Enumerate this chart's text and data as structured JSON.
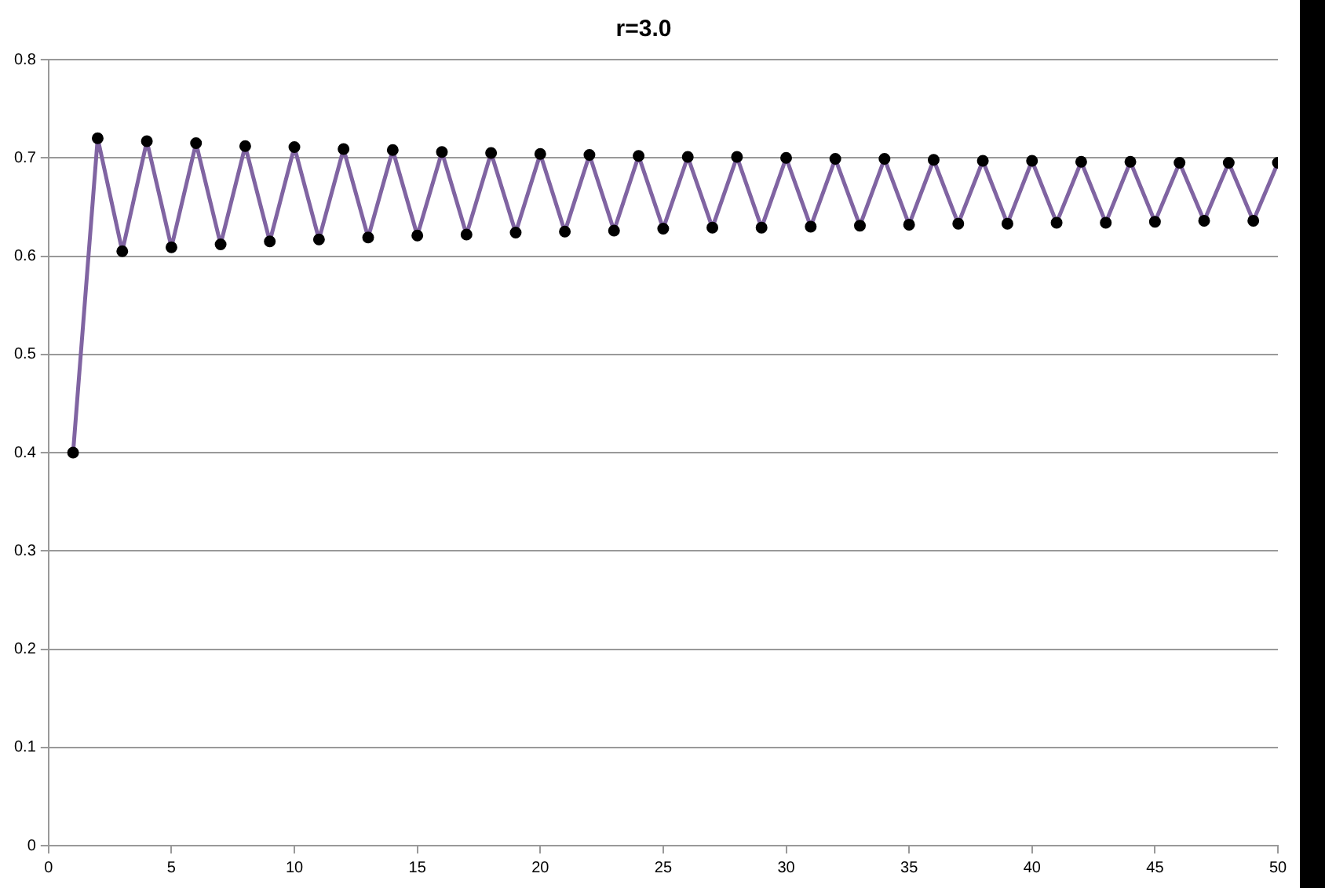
{
  "chart_data": {
    "type": "line",
    "title": "r=3.0",
    "x": [
      1,
      2,
      3,
      4,
      5,
      6,
      7,
      8,
      9,
      10,
      11,
      12,
      13,
      14,
      15,
      16,
      17,
      18,
      19,
      20,
      21,
      22,
      23,
      24,
      25,
      26,
      27,
      28,
      29,
      30,
      31,
      32,
      33,
      34,
      35,
      36,
      37,
      38,
      39,
      40,
      41,
      42,
      43,
      44,
      45,
      46,
      47,
      48,
      49,
      50
    ],
    "series": [
      {
        "color": "#8064a2",
        "values": [
          0.4,
          0.72,
          0.605,
          0.717,
          0.609,
          0.715,
          0.612,
          0.712,
          0.615,
          0.711,
          0.617,
          0.709,
          0.619,
          0.708,
          0.621,
          0.706,
          0.622,
          0.705,
          0.624,
          0.704,
          0.625,
          0.703,
          0.626,
          0.702,
          0.628,
          0.701,
          0.629,
          0.701,
          0.629,
          0.7,
          0.63,
          0.699,
          0.631,
          0.699,
          0.632,
          0.698,
          0.633,
          0.697,
          0.633,
          0.697,
          0.634,
          0.696,
          0.634,
          0.696,
          0.635,
          0.695,
          0.636,
          0.695,
          0.636,
          0.695
        ]
      }
    ],
    "xlim": [
      0,
      50
    ],
    "xticks": [
      0,
      5,
      10,
      15,
      20,
      25,
      30,
      35,
      40,
      45,
      50
    ],
    "ylim": [
      0,
      0.8
    ],
    "yticks": [
      0,
      0.1,
      0.2,
      0.3,
      0.4,
      0.5,
      0.6,
      0.7,
      0.8
    ],
    "grid": "y",
    "marker": "circle",
    "line_style": "solid",
    "legend": false
  }
}
